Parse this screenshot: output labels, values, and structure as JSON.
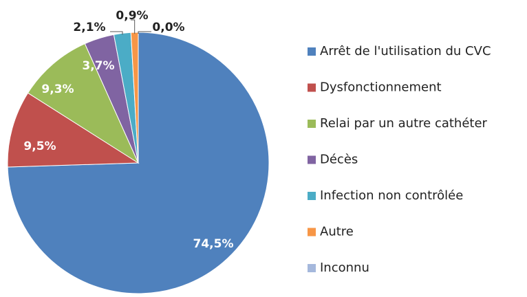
{
  "chart_data": {
    "type": "pie",
    "categories": [
      "Arrêt de l'utilisation du CVC",
      "Dysfonctionnement",
      "Relai par un autre cathéter",
      "Décès",
      "Infection non contrôlée",
      "Autre",
      "Inconnu"
    ],
    "values": [
      74.5,
      9.5,
      9.3,
      3.7,
      2.1,
      0.9,
      0.0
    ],
    "value_labels": [
      "74,5%",
      "9,5%",
      "9,3%",
      "3,7%",
      "2,1%",
      "0,9%",
      "0,0%"
    ],
    "colors": [
      "#4f81bd",
      "#c0504d",
      "#9bbb59",
      "#8064a2",
      "#4bacc6",
      "#f79646",
      "#a5b8dc"
    ],
    "legend": "right"
  }
}
